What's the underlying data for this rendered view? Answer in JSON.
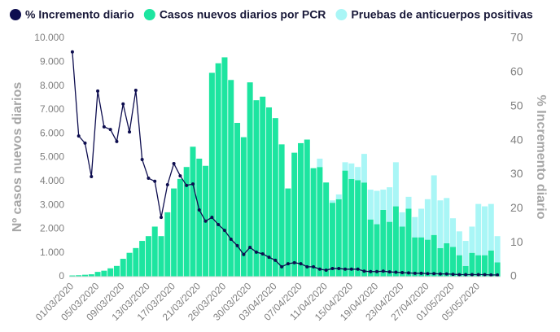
{
  "chart_data": {
    "type": "bar",
    "stacked": true,
    "legend": "top",
    "ylabel": "Nº casos nuevos diarios",
    "y2label": "% Incremento diario",
    "ylim": [
      0,
      10000
    ],
    "yticks": [
      0,
      {
        "value": 1000,
        "label": "1.000"
      },
      {
        "value": 2000,
        "label": "2.000"
      },
      {
        "value": 3000,
        "label": "3.000"
      },
      {
        "value": 4000,
        "label": "4.000"
      },
      {
        "value": 5000,
        "label": "5.000"
      },
      {
        "value": 6000,
        "label": "6.000"
      },
      {
        "value": 7000,
        "label": "7.000"
      },
      {
        "value": 8000,
        "label": "8.000"
      },
      {
        "value": 9000,
        "label": "9.000"
      },
      {
        "value": 10000,
        "label": "10.000"
      }
    ],
    "y2lim": [
      0,
      70
    ],
    "y2ticks": [
      0,
      10,
      20,
      30,
      40,
      50,
      60,
      70
    ],
    "categories": [
      "01/03/2020",
      null,
      null,
      null,
      "05/03/2020",
      null,
      null,
      null,
      "09/03/2020",
      null,
      null,
      null,
      "13/03/2020",
      null,
      null,
      null,
      "17/03/2020",
      null,
      null,
      null,
      "21/03/2020",
      null,
      null,
      null,
      "26/03/2020",
      null,
      null,
      null,
      "30/03/2020",
      null,
      null,
      null,
      "03/04/2020",
      null,
      null,
      null,
      "07/04/2020",
      null,
      null,
      null,
      "11/04/2020",
      null,
      null,
      null,
      "15/04/2020",
      null,
      null,
      null,
      "19/04/2020",
      null,
      null,
      null,
      "23/04/2020",
      null,
      null,
      null,
      "27/04/2020",
      null,
      null,
      null,
      "01/05/2020",
      null,
      null,
      null,
      "05/05/2020",
      null,
      null,
      null
    ],
    "series": [
      {
        "name": "% Incremento diario",
        "type": "line",
        "axis": "y2",
        "color": "#0d0d4f",
        "values": [
          66,
          41.3,
          39.2,
          29.4,
          54.5,
          44,
          43.2,
          39.7,
          50.7,
          42.5,
          54.7,
          34.4,
          28.9,
          28,
          17.4,
          27,
          33.2,
          29.6,
          26.8,
          27.2,
          19.6,
          16.3,
          17.4,
          15.3,
          13.6,
          11,
          9.1,
          6.5,
          8.6,
          7.2,
          6.7,
          5.7,
          4.8,
          2.9,
          3.8,
          4.1,
          3.8,
          2.9,
          2.9,
          2.2,
          1.9,
          2.4,
          2.4,
          2.2,
          2.2,
          2.2,
          1.6,
          1.5,
          1.5,
          1.6,
          1.4,
          1.3,
          1.2,
          1.1,
          1.0,
          1.0,
          0.9,
          0.9,
          0.8,
          0.8,
          0.7,
          0.6,
          0.6,
          0.6,
          0.6,
          0.6,
          0.5,
          0.5
        ]
      },
      {
        "name": "Casos nuevos diarios por PCR",
        "type": "bar",
        "color": "#1de5a0",
        "values": [
          50,
          60,
          80,
          100,
          200,
          250,
          350,
          450,
          750,
          1000,
          1200,
          1500,
          1700,
          2100,
          1700,
          2700,
          3700,
          4100,
          4600,
          5450,
          4950,
          4650,
          8550,
          8950,
          9200,
          8250,
          6450,
          5850,
          8150,
          7400,
          7550,
          7100,
          6650,
          5550,
          3700,
          5200,
          5600,
          5750,
          4550,
          4600,
          3950,
          3100,
          3250,
          4450,
          4100,
          4050,
          3950,
          2400,
          2200,
          2800,
          2300,
          2950,
          2100,
          2850,
          1650,
          1650,
          1550,
          1750,
          1200,
          1400,
          1250,
          900,
          450,
          1000,
          900,
          900,
          1100,
          600
        ]
      },
      {
        "name": "Pruebas de anticuerpos positivas",
        "type": "bar",
        "color": "#a9f6f6",
        "values": [
          0,
          0,
          0,
          0,
          0,
          0,
          0,
          0,
          0,
          0,
          0,
          0,
          0,
          0,
          0,
          0,
          0,
          0,
          0,
          0,
          0,
          0,
          0,
          0,
          0,
          0,
          0,
          0,
          0,
          0,
          0,
          0,
          0,
          0,
          0,
          0,
          0,
          0,
          0,
          350,
          0,
          100,
          200,
          350,
          650,
          550,
          1200,
          1250,
          1400,
          850,
          1450,
          1850,
          600,
          500,
          850,
          1200,
          1700,
          2500,
          2000,
          1900,
          1200,
          1000,
          1050,
          1100,
          2150,
          2050,
          1950,
          1100
        ]
      }
    ]
  }
}
